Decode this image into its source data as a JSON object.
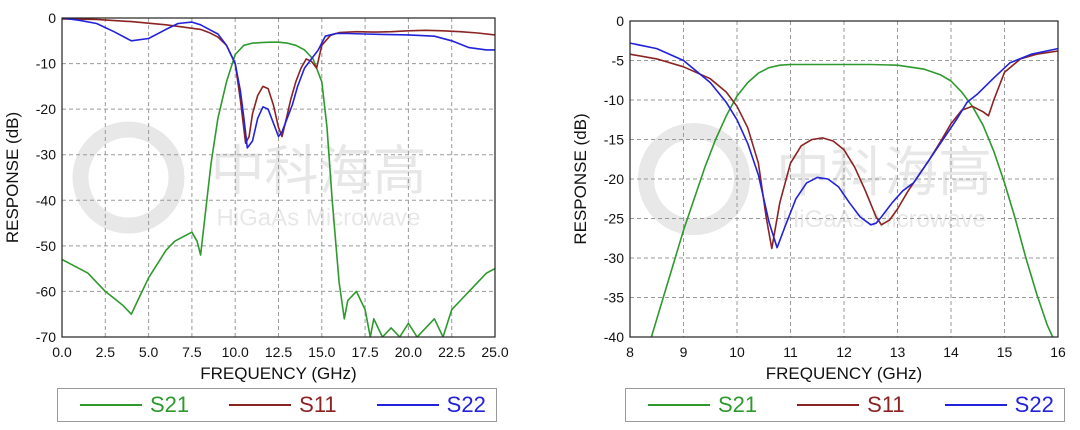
{
  "chart_data": [
    {
      "type": "line",
      "xlabel": "FREQUENCY (GHz)",
      "ylabel": "RESPONSE (dB)",
      "xlim": [
        0,
        25
      ],
      "ylim": [
        -70,
        0
      ],
      "xticks": [
        "0.0",
        "2.5",
        "5.0",
        "7.5",
        "10.0",
        "12.5",
        "15.0",
        "17.5",
        "20.0",
        "22.5",
        "25.0"
      ],
      "yticks": [
        "0",
        "-10",
        "-20",
        "-30",
        "-40",
        "-50",
        "-60",
        "-70"
      ],
      "grid": true,
      "legend_position": "bottom",
      "series": [
        {
          "name": "S21",
          "color": "#2e9a2e",
          "x": [
            0,
            0.5,
            1,
            1.5,
            2,
            2.5,
            3,
            3.5,
            4,
            4.5,
            5,
            5.5,
            6,
            6.5,
            7,
            7.5,
            7.8,
            8,
            8.3,
            8.6,
            9,
            9.5,
            10,
            10.5,
            11,
            11.5,
            12,
            12.5,
            13,
            13.5,
            14,
            14.5,
            15,
            15.3,
            15.6,
            16,
            16.3,
            16.5,
            17,
            17.5,
            17.8,
            18,
            18.5,
            19,
            19.5,
            20,
            20.5,
            21,
            21.5,
            22,
            22.5,
            23,
            23.5,
            24,
            24.5,
            25
          ],
          "y": [
            -53,
            -54,
            -55,
            -56,
            -58,
            -60,
            -61.5,
            -63,
            -65,
            -61,
            -57,
            -54,
            -51,
            -49,
            -48,
            -47,
            -49,
            -52,
            -42,
            -32,
            -22,
            -14,
            -8,
            -6,
            -5.5,
            -5.4,
            -5.3,
            -5.3,
            -5.5,
            -6,
            -7,
            -9,
            -14,
            -24,
            -40,
            -58,
            -66,
            -62,
            -60,
            -64,
            -70,
            -66,
            -70,
            -68,
            -70,
            -67,
            -70,
            -68,
            -66,
            -70,
            -64,
            -62,
            -60,
            -58,
            -56,
            -55
          ]
        },
        {
          "name": "S11",
          "color": "#8b2323",
          "x": [
            0,
            2,
            4,
            6,
            7,
            8,
            8.5,
            9,
            9.5,
            10,
            10.3,
            10.6,
            10.8,
            11,
            11.3,
            11.6,
            11.9,
            12.2,
            12.5,
            12.7,
            12.9,
            13.2,
            13.5,
            13.8,
            14.1,
            14.4,
            14.7,
            15,
            15.5,
            16,
            17,
            18,
            19,
            20,
            21,
            22,
            23,
            24,
            25
          ],
          "y": [
            -0.2,
            -0.3,
            -0.8,
            -1.5,
            -2,
            -2.5,
            -3.2,
            -4.2,
            -6,
            -10,
            -18,
            -27.5,
            -26,
            -21,
            -17,
            -15,
            -15.5,
            -19,
            -24,
            -26,
            -23,
            -18,
            -14,
            -11,
            -9,
            -9.5,
            -11,
            -6,
            -3.8,
            -3.2,
            -3,
            -3.1,
            -3,
            -2.8,
            -2.7,
            -2.8,
            -3,
            -3.3,
            -3.7
          ]
        },
        {
          "name": "S22",
          "color": "#2222dd",
          "x": [
            0,
            1,
            2,
            3,
            4,
            5,
            6,
            6.7,
            7.5,
            8,
            8.5,
            9,
            9.5,
            10,
            10.3,
            10.5,
            10.7,
            11,
            11.3,
            11.6,
            11.9,
            12.2,
            12.5,
            12.7,
            13,
            13.3,
            13.6,
            14,
            14.4,
            14.8,
            15.2,
            15.8,
            16.5,
            17.5,
            18.5,
            20,
            21.5,
            22.5,
            23.5,
            24.5,
            25
          ],
          "y": [
            0,
            -0.5,
            -1.2,
            -3,
            -5,
            -4.5,
            -2.5,
            -1.2,
            -0.9,
            -1.5,
            -2.5,
            -3.5,
            -6,
            -10,
            -16,
            -22,
            -28.5,
            -27,
            -22,
            -19.5,
            -20,
            -23,
            -26,
            -25,
            -22,
            -19,
            -15,
            -11,
            -9,
            -7,
            -4,
            -3.4,
            -3.4,
            -3.5,
            -3.6,
            -3.7,
            -4,
            -5,
            -6.5,
            -7,
            -7
          ]
        }
      ]
    },
    {
      "type": "line",
      "xlabel": "FREQUENCY (GHz)",
      "ylabel": "RESPONSE (dB)",
      "xlim": [
        8,
        16
      ],
      "ylim": [
        -40,
        0
      ],
      "xticks": [
        "8",
        "9",
        "10",
        "11",
        "12",
        "13",
        "14",
        "15",
        "16"
      ],
      "yticks": [
        "0",
        "-5",
        "-10",
        "-15",
        "-20",
        "-25",
        "-30",
        "-35",
        "-40"
      ],
      "grid": true,
      "legend_position": "bottom",
      "series": [
        {
          "name": "S21",
          "color": "#2e9a2e",
          "x": [
            8.4,
            8.6,
            8.8,
            9.0,
            9.2,
            9.4,
            9.6,
            9.8,
            10,
            10.2,
            10.4,
            10.6,
            10.8,
            11,
            11.5,
            12,
            12.5,
            13,
            13.5,
            13.8,
            14.0,
            14.2,
            14.4,
            14.6,
            14.8,
            15.0,
            15.2,
            15.4,
            15.6,
            15.8,
            15.9
          ],
          "y": [
            -40,
            -35.5,
            -31,
            -26.5,
            -22.5,
            -18.5,
            -15,
            -12,
            -9.5,
            -7.8,
            -6.6,
            -5.9,
            -5.6,
            -5.5,
            -5.5,
            -5.5,
            -5.5,
            -5.6,
            -6.1,
            -6.8,
            -7.6,
            -9,
            -10.8,
            -13.2,
            -16.5,
            -20.5,
            -25,
            -30,
            -34.5,
            -38.5,
            -40
          ]
        },
        {
          "name": "S11",
          "color": "#8b2323",
          "x": [
            8,
            8.5,
            9,
            9.5,
            9.8,
            10,
            10.2,
            10.4,
            10.55,
            10.65,
            10.8,
            11,
            11.2,
            11.4,
            11.6,
            11.8,
            12,
            12.2,
            12.4,
            12.6,
            12.7,
            12.85,
            13,
            13.2,
            13.4,
            13.6,
            13.8,
            14,
            14.2,
            14.4,
            14.6,
            14.7,
            14.8,
            15,
            15.3,
            15.6,
            16
          ],
          "y": [
            -4.2,
            -4.8,
            -5.8,
            -7.3,
            -9,
            -10.8,
            -13.5,
            -18,
            -25,
            -28.8,
            -23,
            -18,
            -15.8,
            -15,
            -14.8,
            -15.2,
            -16.3,
            -18.5,
            -21.5,
            -24.8,
            -25.8,
            -25.2,
            -23.8,
            -21.5,
            -19.5,
            -17.5,
            -15.3,
            -13,
            -11.3,
            -10.8,
            -11.5,
            -12,
            -10,
            -6.5,
            -4.8,
            -4.2,
            -3.8
          ]
        },
        {
          "name": "S22",
          "color": "#2222dd",
          "x": [
            8,
            8.5,
            9,
            9.5,
            9.8,
            10,
            10.2,
            10.4,
            10.6,
            10.75,
            10.9,
            11.1,
            11.3,
            11.5,
            11.7,
            11.9,
            12.1,
            12.3,
            12.5,
            12.6,
            12.7,
            12.9,
            13.1,
            13.3,
            13.5,
            13.7,
            13.9,
            14.1,
            14.3,
            14.5,
            14.8,
            15.1,
            15.5,
            16
          ],
          "y": [
            -2.8,
            -3.5,
            -5,
            -7.8,
            -10.3,
            -12.5,
            -15.5,
            -19.5,
            -25.5,
            -28.7,
            -26,
            -22.5,
            -20.5,
            -19.8,
            -20,
            -21,
            -23,
            -24.8,
            -25.8,
            -25.6,
            -24.8,
            -23,
            -21.5,
            -20.5,
            -18.5,
            -16.5,
            -14.5,
            -12.5,
            -10.3,
            -9.2,
            -7.2,
            -5.3,
            -4.2,
            -3.5
          ]
        }
      ]
    }
  ],
  "legends": [
    {
      "items": [
        {
          "label": "S21",
          "color": "#2e9a2e"
        },
        {
          "label": "S11",
          "color": "#8b2323"
        },
        {
          "label": "S22",
          "color": "#2222dd"
        }
      ]
    },
    {
      "items": [
        {
          "label": "S21",
          "color": "#2e9a2e"
        },
        {
          "label": "S11",
          "color": "#8b2323"
        },
        {
          "label": "S22",
          "color": "#2222dd"
        }
      ]
    }
  ],
  "watermark": {
    "text_cn": "中科海高",
    "text_en": "HiGaAs Microwave"
  }
}
